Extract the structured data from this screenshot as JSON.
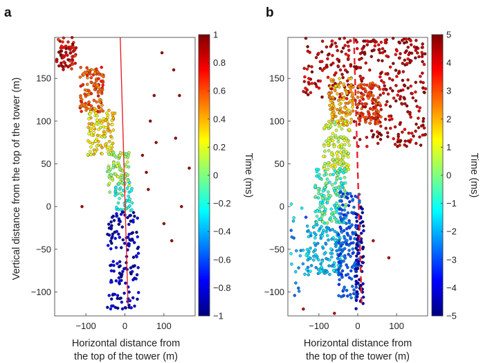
{
  "chart_data": [
    {
      "panel_label": "a",
      "type": "scatter",
      "xlabel": [
        "Horizontal distance from",
        "the top of the tower (m)"
      ],
      "ylabel": "Vertical distance from the top of the tower (m)",
      "xlim": [
        -180,
        180
      ],
      "ylim": [
        -128,
        198
      ],
      "xticks": [
        -100,
        0,
        100
      ],
      "xtick_labels": [
        "−100",
        "0",
        "100"
      ],
      "yticks": [
        -100,
        -50,
        0,
        50,
        100,
        150
      ],
      "ytick_labels": [
        "−100",
        "−50",
        "0",
        "50",
        "100",
        "150"
      ],
      "colorbar": {
        "label": "Time (ms)",
        "range": [
          -1,
          1
        ],
        "ticks": [
          -1,
          -0.8,
          -0.6,
          -0.4,
          -0.2,
          0,
          0.2,
          0.4,
          0.6,
          0.8,
          1
        ],
        "tick_labels": [
          "−1",
          "−0.8",
          "−0.6",
          "−0.4",
          "−0.2",
          "0",
          "0.2",
          "0.4",
          "0.6",
          "0.8",
          "1"
        ],
        "colormap": "jet"
      },
      "line": {
        "style": "solid",
        "color": "#e8202a",
        "points": [
          [
            -12,
            198
          ],
          [
            8,
            -115
          ]
        ]
      },
      "clusters": [
        {
          "x": [
            -175,
            -125
          ],
          "y": [
            160,
            198
          ],
          "t": [
            0.6,
            1.0
          ],
          "n": 70
        },
        {
          "x": [
            -115,
            -55
          ],
          "y": [
            110,
            165
          ],
          "t": [
            0.45,
            0.75
          ],
          "n": 120
        },
        {
          "x": [
            -95,
            -25
          ],
          "y": [
            60,
            115
          ],
          "t": [
            0.15,
            0.45
          ],
          "n": 110
        },
        {
          "x": [
            -45,
            12
          ],
          "y": [
            15,
            65
          ],
          "t": [
            -0.05,
            0.2
          ],
          "n": 80
        },
        {
          "x": [
            -25,
            20
          ],
          "y": [
            -5,
            30
          ],
          "t": [
            -0.3,
            -0.1
          ],
          "n": 40
        },
        {
          "x": [
            -45,
            35
          ],
          "y": [
            -120,
            -5
          ],
          "t": [
            -1.0,
            -0.7
          ],
          "n": 150
        }
      ],
      "outliers": {
        "x": [
          95,
          125,
          140,
          65,
          130,
          80,
          165,
          145,
          100,
          55,
          -110,
          75,
          120,
          60,
          45
        ],
        "y": [
          180,
          160,
          130,
          100,
          80,
          75,
          45,
          0,
          -20,
          40,
          0,
          130,
          -40,
          20,
          60
        ],
        "t": 0.95
      }
    },
    {
      "panel_label": "b",
      "type": "scatter",
      "xlabel": [
        "Horizontal distance from",
        "the top of the tower (m)"
      ],
      "xlim": [
        -180,
        180
      ],
      "ylim": [
        -128,
        198
      ],
      "xticks": [
        -100,
        0,
        100
      ],
      "xtick_labels": [
        "−100",
        "0",
        "100"
      ],
      "yticks": [
        -100,
        -50,
        0,
        50,
        100,
        150
      ],
      "ytick_labels": [
        "−100",
        "−50",
        "0",
        "50",
        "100",
        "150"
      ],
      "colorbar": {
        "label": "Time (ms)",
        "range": [
          -5,
          5
        ],
        "ticks": [
          -5,
          -4,
          -3,
          -2,
          -1,
          0,
          1,
          2,
          3,
          4,
          5
        ],
        "tick_labels": [
          "−5",
          "−4",
          "−3",
          "−2",
          "−1",
          "0",
          "1",
          "2",
          "3",
          "4",
          "5"
        ],
        "colormap": "jet"
      },
      "line": {
        "style": "dashed",
        "color": "#e8202a",
        "points": [
          [
            -10,
            198
          ],
          [
            10,
            -115
          ]
        ]
      },
      "clusters": [
        {
          "x": [
            -140,
            -10
          ],
          "y": [
            125,
            198
          ],
          "t": [
            3.6,
            5.0
          ],
          "n": 110
        },
        {
          "x": [
            -10,
            175
          ],
          "y": [
            70,
            198
          ],
          "t": [
            3.8,
            5.0
          ],
          "n": 280
        },
        {
          "x": [
            0,
            60
          ],
          "y": [
            95,
            145
          ],
          "t": [
            2.6,
            3.6
          ],
          "n": 90
        },
        {
          "x": [
            -75,
            -10
          ],
          "y": [
            95,
            150
          ],
          "t": [
            1.5,
            2.6
          ],
          "n": 110
        },
        {
          "x": [
            -90,
            -20
          ],
          "y": [
            40,
            100
          ],
          "t": [
            0.2,
            1.5
          ],
          "n": 120
        },
        {
          "x": [
            -110,
            -30
          ],
          "y": [
            -20,
            45
          ],
          "t": [
            -1.5,
            0.2
          ],
          "n": 150
        },
        {
          "x": [
            -130,
            -40
          ],
          "y": [
            -80,
            -20
          ],
          "t": [
            -2.4,
            -1.2
          ],
          "n": 130
        },
        {
          "x": [
            -50,
            5
          ],
          "y": [
            -110,
            20
          ],
          "t": [
            -3.4,
            -2.4
          ],
          "n": 170
        },
        {
          "x": [
            -5,
            15
          ],
          "y": [
            -120,
            0
          ],
          "t": [
            -5.0,
            -4.0
          ],
          "n": 70
        },
        {
          "x": [
            -175,
            -130
          ],
          "y": [
            -110,
            10
          ],
          "t": [
            -3.0,
            -1.0
          ],
          "n": 25
        }
      ],
      "outliers": {
        "x": [
          -140,
          -60,
          40,
          80
        ],
        "y": [
          -120,
          -125,
          -40,
          -60
        ],
        "t": 4.5
      }
    }
  ]
}
